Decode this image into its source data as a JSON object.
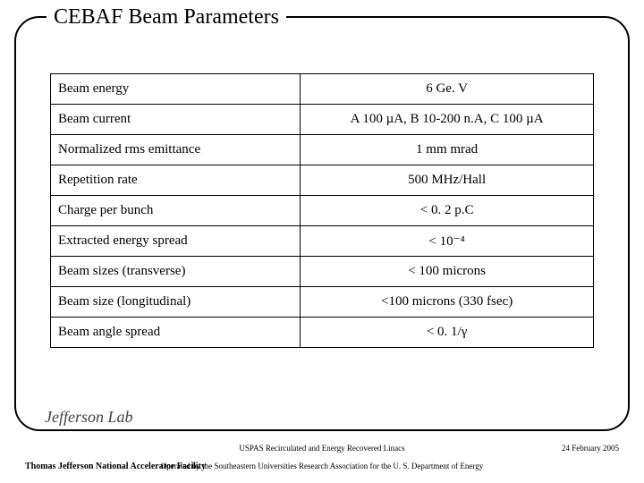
{
  "title": "CEBAF Beam Parameters",
  "table": {
    "rows": [
      {
        "label": "Beam energy",
        "value": "6 Ge. V"
      },
      {
        "label": "Beam current",
        "value": "A 100 µA, B 10-200 n.A, C 100 µA"
      },
      {
        "label": "Normalized rms emittance",
        "value": "1 mm mrad"
      },
      {
        "label": "Repetition rate",
        "value": "500 MHz/Hall"
      },
      {
        "label": "Charge per bunch",
        "value": "< 0. 2 p.C"
      },
      {
        "label": "Extracted energy spread",
        "value": "< 10⁻⁴"
      },
      {
        "label": "Beam sizes (transverse)",
        "value": "< 100 microns"
      },
      {
        "label": "Beam size (longitudinal)",
        "value": "<100 microns (330 fsec)"
      },
      {
        "label": "Beam angle spread",
        "value": "< 0. 1/γ"
      }
    ],
    "border_color": "#000000",
    "label_align": "left",
    "value_align": "center",
    "font_size_pt": 11
  },
  "logo_text": "Jefferson Lab",
  "footer": {
    "left": "Thomas Jefferson National Accelerator Facility",
    "center_line1": "USPAS Recirculated and Energy Recovered Linacs",
    "center_line2": "Operated by the Southeastern Universities Research Association for the U. S. Department of Energy",
    "right": "24 February 2005"
  },
  "colors": {
    "background": "#ffffff",
    "text": "#000000",
    "border": "#000000"
  }
}
